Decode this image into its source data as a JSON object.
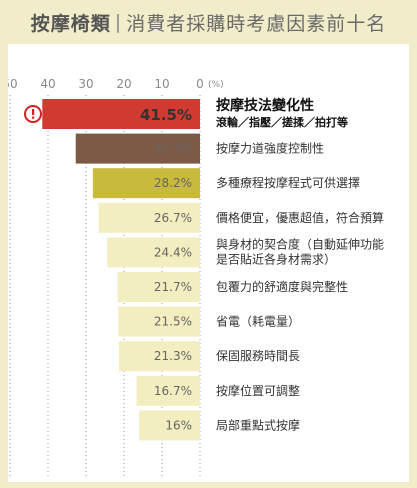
{
  "header": {
    "title_main": "按摩椅類",
    "separator": "|",
    "title_sub": "消費者採購時考慮因素前十名"
  },
  "alert_icon": "exclamation-circle-icon",
  "colors": {
    "page_bg": "#f1ecc9",
    "panel_bg": "#ffffff",
    "dotted_line": "#9a9a9a",
    "icon_red": "#d42020",
    "bar_colors": [
      "#d03a31",
      "#7d5a45",
      "#c8ba3d",
      "#f2eebf",
      "#f2eebf",
      "#f2eebf",
      "#f2eebf",
      "#f2eebf",
      "#f2eebf",
      "#f2eebf"
    ]
  },
  "chart_data": {
    "type": "bar",
    "orientation": "horizontal",
    "x_axis_direction": "reversed",
    "xlim": [
      0,
      50
    ],
    "ticks": [
      50,
      40,
      30,
      20,
      10,
      0
    ],
    "unit_label": "(%)",
    "grid": "dotted vertical lines at ticks",
    "categories": [
      [
        "按摩技法變化性",
        "滾輪／指壓／搓揉／拍打等"
      ],
      [
        "按摩力道強度控制性"
      ],
      [
        "多種療程按摩程式可供選擇"
      ],
      [
        "價格便宜，優惠超值，符合預算"
      ],
      [
        "與身材的契合度（自動延伸功能",
        "是否貼近各身材需求）"
      ],
      [
        "包覆力的舒適度與完整性"
      ],
      [
        "省電（耗電量）"
      ],
      [
        "保固服務時間長"
      ],
      [
        "按摩位置可調整"
      ],
      [
        "局部重點式按摩"
      ]
    ],
    "values": [
      41.5,
      32.7,
      28.2,
      26.7,
      24.4,
      21.7,
      21.5,
      21.3,
      16.7,
      16
    ],
    "value_labels": [
      "41.5%",
      "32.7%",
      "28.2%",
      "26.7%",
      "24.4%",
      "21.7%",
      "21.5%",
      "21.3%",
      "16.7%",
      "16%"
    ]
  }
}
